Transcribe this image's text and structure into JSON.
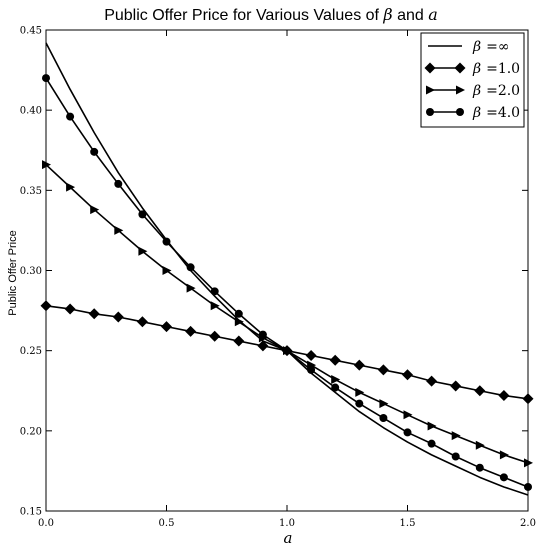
{
  "chart_data": {
    "type": "line",
    "title_parts": [
      "Public Offer Price for Various Values of ",
      "β",
      " and ",
      "a"
    ],
    "xlabel": "a",
    "ylabel": "Public Offer Price",
    "xlim": [
      0.0,
      2.0
    ],
    "ylim": [
      0.15,
      0.45
    ],
    "x_ticks": [
      0.0,
      0.5,
      1.0,
      1.5,
      2.0
    ],
    "x_tick_labels": [
      "0.0",
      "0.5",
      "1.0",
      "1.5",
      "2.0"
    ],
    "y_ticks": [
      0.15,
      0.2,
      0.25,
      0.3,
      0.35,
      0.4,
      0.45
    ],
    "y_tick_labels": [
      "0.15",
      "0.20",
      "0.25",
      "0.30",
      "0.35",
      "0.40",
      "0.45"
    ],
    "grid": false,
    "legend_position": "top-right",
    "series": [
      {
        "name": "β =∞",
        "legend_symbol": "β",
        "legend_value": "=∞",
        "marker": "none",
        "x": [
          0.0,
          0.1,
          0.2,
          0.3,
          0.4,
          0.5,
          0.6,
          0.7,
          0.8,
          0.9,
          1.0,
          1.1,
          1.2,
          1.3,
          1.4,
          1.5,
          1.6,
          1.7,
          1.8,
          1.9,
          2.0
        ],
        "y": [
          0.442,
          0.413,
          0.386,
          0.361,
          0.339,
          0.319,
          0.3,
          0.284,
          0.269,
          0.256,
          0.25,
          0.236,
          0.224,
          0.212,
          0.202,
          0.193,
          0.185,
          0.178,
          0.171,
          0.165,
          0.16
        ]
      },
      {
        "name": "β =1.0",
        "legend_symbol": "β",
        "legend_value": "=1.0",
        "marker": "diamond",
        "x": [
          0.0,
          0.1,
          0.2,
          0.3,
          0.4,
          0.5,
          0.6,
          0.7,
          0.8,
          0.9,
          1.0,
          1.1,
          1.2,
          1.3,
          1.4,
          1.5,
          1.6,
          1.7,
          1.8,
          1.9,
          2.0
        ],
        "y": [
          0.278,
          0.276,
          0.273,
          0.271,
          0.268,
          0.265,
          0.262,
          0.259,
          0.256,
          0.253,
          0.25,
          0.247,
          0.244,
          0.241,
          0.238,
          0.235,
          0.231,
          0.228,
          0.225,
          0.222,
          0.22
        ]
      },
      {
        "name": "β =2.0",
        "legend_symbol": "β",
        "legend_value": "=2.0",
        "marker": "triangle-right",
        "x": [
          0.0,
          0.1,
          0.2,
          0.3,
          0.4,
          0.5,
          0.6,
          0.7,
          0.8,
          0.9,
          1.0,
          1.1,
          1.2,
          1.3,
          1.4,
          1.5,
          1.6,
          1.7,
          1.8,
          1.9,
          2.0
        ],
        "y": [
          0.366,
          0.352,
          0.338,
          0.325,
          0.312,
          0.3,
          0.289,
          0.278,
          0.268,
          0.258,
          0.25,
          0.241,
          0.232,
          0.224,
          0.217,
          0.21,
          0.203,
          0.197,
          0.191,
          0.185,
          0.18
        ]
      },
      {
        "name": "β =4.0",
        "legend_symbol": "β",
        "legend_value": "=4.0",
        "marker": "circle",
        "x": [
          0.0,
          0.1,
          0.2,
          0.3,
          0.4,
          0.5,
          0.6,
          0.7,
          0.8,
          0.9,
          1.0,
          1.1,
          1.2,
          1.3,
          1.4,
          1.5,
          1.6,
          1.7,
          1.8,
          1.9,
          2.0
        ],
        "y": [
          0.42,
          0.396,
          0.374,
          0.354,
          0.335,
          0.318,
          0.302,
          0.287,
          0.273,
          0.26,
          0.25,
          0.238,
          0.227,
          0.217,
          0.208,
          0.199,
          0.192,
          0.184,
          0.177,
          0.171,
          0.165
        ]
      }
    ]
  }
}
